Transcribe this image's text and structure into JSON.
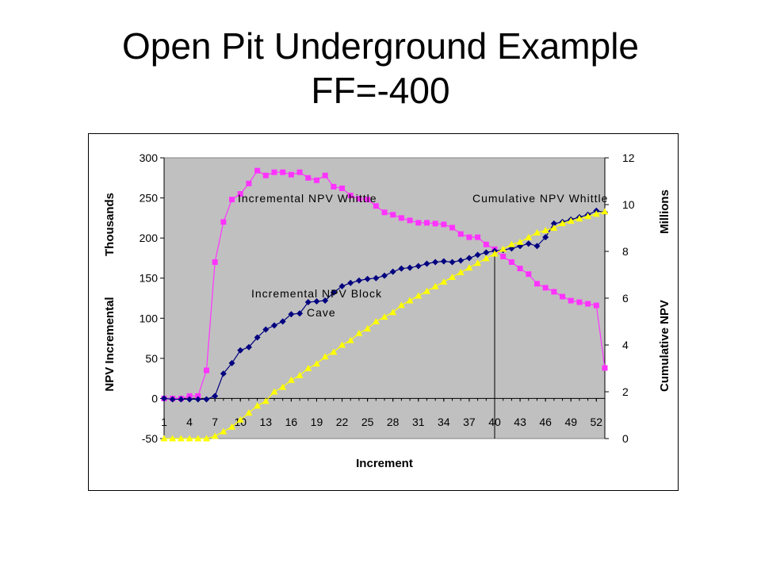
{
  "title_line1": "Open Pit Underground Example",
  "title_line2": "FF=-400",
  "chart_data": {
    "type": "line",
    "xlabel": "Increment",
    "ylabel_left": "NPV Incremental",
    "ylabel_left_unit": "Thousands",
    "ylabel_right": "Cumulative NPV",
    "ylabel_right_unit": "Millions",
    "x_tick_labels": [
      "1",
      "4",
      "7",
      "10",
      "13",
      "16",
      "19",
      "22",
      "25",
      "28",
      "31",
      "34",
      "37",
      "40",
      "43",
      "46",
      "49",
      "52"
    ],
    "ylim_left": [
      -50,
      300
    ],
    "yticks_left": [
      "-50",
      "0",
      "50",
      "100",
      "150",
      "200",
      "250",
      "300"
    ],
    "ylim_right": [
      0,
      12
    ],
    "yticks_right": [
      "0",
      "2",
      "4",
      "6",
      "8",
      "10",
      "12"
    ],
    "x": [
      1,
      2,
      3,
      4,
      5,
      6,
      7,
      8,
      9,
      10,
      11,
      12,
      13,
      14,
      15,
      16,
      17,
      18,
      19,
      20,
      21,
      22,
      23,
      24,
      25,
      26,
      27,
      28,
      29,
      30,
      31,
      32,
      33,
      34,
      35,
      36,
      37,
      38,
      39,
      40,
      41,
      42,
      43,
      44,
      45,
      46,
      47,
      48,
      49,
      50,
      51,
      52,
      53
    ],
    "series": [
      {
        "name": "Incremental NPV Whittle",
        "axis": "left",
        "color": "#ff33ff",
        "marker": "square",
        "values": [
          0,
          0,
          0,
          3,
          3,
          35,
          170,
          220,
          248,
          255,
          268,
          284,
          278,
          282,
          282,
          279,
          282,
          275,
          272,
          278,
          264,
          262,
          253,
          249,
          248,
          240,
          232,
          229,
          225,
          222,
          219,
          219,
          218,
          217,
          213,
          205,
          201,
          201,
          192,
          186,
          177,
          170,
          162,
          155,
          143,
          138,
          133,
          127,
          122,
          120,
          118,
          116,
          38
        ]
      },
      {
        "name": "Incremental NPV Block Cave",
        "axis": "left",
        "color": "#000080",
        "marker": "diamond",
        "values": [
          0,
          -1,
          -1,
          -1,
          -1,
          -1,
          3,
          31,
          44,
          60,
          64,
          76,
          86,
          91,
          96,
          105,
          106,
          120,
          121,
          122,
          132,
          140,
          144,
          147,
          149,
          150,
          153,
          158,
          162,
          163,
          165,
          168,
          170,
          171,
          170,
          172,
          175,
          179,
          182,
          184,
          185,
          187,
          190,
          193,
          190,
          201,
          218,
          220,
          223,
          226,
          229,
          234,
          232
        ]
      },
      {
        "name": "Cumulative NPV Whittle",
        "axis": "right",
        "color": "#ffff00",
        "marker": "triangle",
        "values": [
          0,
          0,
          0,
          0,
          0,
          0,
          0.1,
          0.3,
          0.5,
          0.8,
          1.1,
          1.4,
          1.6,
          2.0,
          2.2,
          2.5,
          2.7,
          3.0,
          3.2,
          3.5,
          3.7,
          4.0,
          4.2,
          4.5,
          4.7,
          5.0,
          5.2,
          5.4,
          5.7,
          5.9,
          6.1,
          6.3,
          6.5,
          6.7,
          6.9,
          7.1,
          7.3,
          7.5,
          7.7,
          7.9,
          8.1,
          8.3,
          8.4,
          8.6,
          8.8,
          8.9,
          9.0,
          9.2,
          9.3,
          9.4,
          9.5,
          9.6,
          9.7
        ]
      }
    ],
    "annotations": [
      "Incremental NPV Whittle",
      "Cumulative NPV Whittle",
      "Incremental NPV Block",
      "Cave"
    ],
    "vertical_marker_x": 40,
    "grid": false,
    "plot_background": "#c0c0c0"
  }
}
